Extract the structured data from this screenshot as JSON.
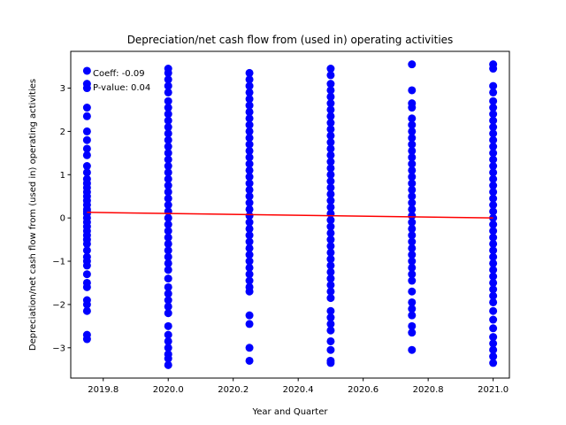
{
  "chart_data": {
    "type": "scatter",
    "title": "Depreciation/net cash flow from (used in) operating activities",
    "xlabel": "Year and Quarter",
    "ylabel": "Depreciation/net cash flow from (used in) operating activities",
    "xlim": [
      2019.7,
      2021.05
    ],
    "ylim": [
      -3.7,
      3.85
    ],
    "xticks": [
      2019.8,
      2020.0,
      2020.2,
      2020.4,
      2020.6,
      2020.8,
      2021.0
    ],
    "xtick_labels": [
      "2019.8",
      "2020.0",
      "2020.2",
      "2020.4",
      "2020.6",
      "2020.8",
      "2021.0"
    ],
    "yticks": [
      -3,
      -2,
      -1,
      0,
      1,
      2,
      3
    ],
    "ytick_labels": [
      "−3",
      "−2",
      "−1",
      "0",
      "1",
      "2",
      "3"
    ],
    "grid": false,
    "point_color": "#0000ff",
    "line_color": "#ff0000",
    "annotations": [
      {
        "text": "Coeff: -0.09"
      },
      {
        "text": "P-value: 0.04"
      }
    ],
    "regression": {
      "x": [
        2019.75,
        2021.0
      ],
      "y": [
        0.13,
        0.0
      ]
    },
    "series": [
      {
        "x": 2019.75,
        "y": [
          3.4,
          3.1,
          3.0,
          2.55,
          2.35,
          2.0,
          1.8,
          1.6,
          1.45,
          1.2,
          1.05,
          0.9,
          0.8,
          0.7,
          0.6,
          0.5,
          0.4,
          0.3,
          0.2,
          0.15,
          0.1,
          0.0,
          -0.1,
          -0.2,
          -0.3,
          -0.4,
          -0.5,
          -0.6,
          -0.75,
          -0.9,
          -1.0,
          -1.1,
          -1.3,
          -1.5,
          -1.6,
          -1.9,
          -2.0,
          -2.15,
          -2.7,
          -2.8
        ]
      },
      {
        "x": 2020.0,
        "y": [
          3.45,
          3.35,
          3.2,
          3.05,
          2.9,
          2.7,
          2.55,
          2.4,
          2.25,
          2.1,
          1.95,
          1.8,
          1.65,
          1.5,
          1.35,
          1.2,
          1.05,
          0.9,
          0.75,
          0.6,
          0.45,
          0.3,
          0.15,
          0.0,
          -0.15,
          -0.3,
          -0.45,
          -0.6,
          -0.75,
          -0.9,
          -1.05,
          -1.2,
          -1.4,
          -1.6,
          -1.75,
          -1.9,
          -2.05,
          -2.2,
          -2.5,
          -2.7,
          -2.85,
          -3.0,
          -3.15,
          -3.25,
          -3.4
        ]
      },
      {
        "x": 2020.25,
        "y": [
          3.35,
          3.2,
          3.05,
          2.9,
          2.75,
          2.6,
          2.45,
          2.3,
          2.15,
          2.0,
          1.85,
          1.7,
          1.55,
          1.4,
          1.25,
          1.1,
          0.95,
          0.8,
          0.65,
          0.5,
          0.35,
          0.2,
          0.05,
          -0.1,
          -0.25,
          -0.4,
          -0.55,
          -0.7,
          -0.85,
          -1.0,
          -1.15,
          -1.3,
          -1.45,
          -1.6,
          -1.7,
          -2.25,
          -2.45,
          -3.0,
          -3.3
        ]
      },
      {
        "x": 2020.5,
        "y": [
          3.45,
          3.3,
          3.1,
          2.95,
          2.8,
          2.65,
          2.5,
          2.35,
          2.2,
          2.05,
          1.9,
          1.75,
          1.6,
          1.45,
          1.3,
          1.15,
          1.0,
          0.85,
          0.7,
          0.55,
          0.4,
          0.25,
          0.1,
          -0.05,
          -0.2,
          -0.35,
          -0.5,
          -0.65,
          -0.8,
          -0.95,
          -1.1,
          -1.25,
          -1.4,
          -1.55,
          -1.7,
          -1.85,
          -2.15,
          -2.3,
          -2.45,
          -2.6,
          -2.85,
          -3.05,
          -3.3,
          -3.35
        ]
      },
      {
        "x": 2020.75,
        "y": [
          3.55,
          2.95,
          2.65,
          2.55,
          2.3,
          2.15,
          2.0,
          1.85,
          1.7,
          1.55,
          1.4,
          1.25,
          1.1,
          0.95,
          0.8,
          0.65,
          0.5,
          0.35,
          0.2,
          0.05,
          -0.1,
          -0.25,
          -0.4,
          -0.55,
          -0.7,
          -0.85,
          -1.0,
          -1.15,
          -1.3,
          -1.45,
          -1.7,
          -1.95,
          -2.1,
          -2.25,
          -2.5,
          -2.65,
          -3.05
        ]
      },
      {
        "x": 2021.0,
        "y": [
          3.55,
          3.45,
          3.05,
          2.9,
          2.7,
          2.55,
          2.4,
          2.25,
          2.1,
          1.95,
          1.8,
          1.65,
          1.5,
          1.35,
          1.2,
          1.05,
          0.9,
          0.75,
          0.6,
          0.45,
          0.3,
          0.15,
          0.0,
          -0.15,
          -0.3,
          -0.45,
          -0.6,
          -0.75,
          -0.9,
          -1.05,
          -1.2,
          -1.35,
          -1.5,
          -1.65,
          -1.8,
          -1.95,
          -2.15,
          -2.35,
          -2.55,
          -2.75,
          -2.9,
          -3.05,
          -3.2,
          -3.35
        ]
      }
    ]
  }
}
